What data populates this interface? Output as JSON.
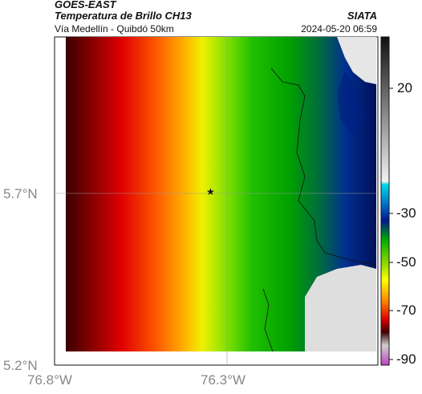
{
  "header": {
    "satellite": "GOES-EAST",
    "product": "Temperatura de Brillo CH13",
    "region": "Vía Medellín - Quibdó 50km",
    "brand": "SIATA",
    "datetime": "2024-05-20 06:59"
  },
  "axes": {
    "lat_ticks": [
      "5.7°N",
      "5.2°N"
    ],
    "lon_ticks": [
      "76.8°W",
      "76.3°W"
    ]
  },
  "colorbar": {
    "ticks": [
      "20",
      "-30",
      "-50",
      "-70",
      "-90"
    ],
    "colors": [
      "#111111",
      "#888888",
      "#e8e8e8",
      "#00c8e0",
      "#0000a0",
      "#00b000",
      "#ffff00",
      "#ff8000",
      "#e00000",
      "#500000",
      "#c040c0"
    ]
  },
  "marker": {
    "symbol": "★"
  }
}
